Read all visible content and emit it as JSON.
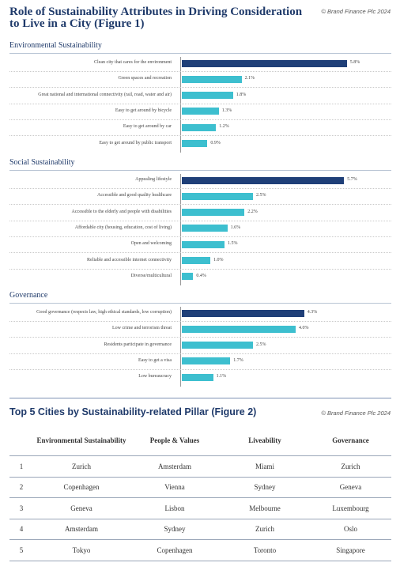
{
  "figure1": {
    "title": "Role of Sustainability Attributes in Driving Consideration to Live in a City (Figure 1)",
    "copyright": "© Brand Finance Plc 2024"
  },
  "chart_data": {
    "type": "bar",
    "orientation": "horizontal",
    "unit": "%",
    "xlim": [
      0,
      6.0
    ],
    "colors": {
      "highlight": "#1f3f78",
      "normal": "#3dbfcf"
    },
    "groups": [
      {
        "name": "Environmental Sustainability",
        "categories": [
          "Clean city that cares for the environment",
          "Green spaces and recreation",
          "Great national and international connectivity (rail, road, water and air)",
          "Easy to get around by bicycle",
          "Easy to get around by car",
          "Easy to get around by public transport"
        ],
        "values": [
          5.8,
          2.1,
          1.8,
          1.3,
          1.2,
          0.9
        ]
      },
      {
        "name": "Social Sustainability",
        "categories": [
          "Appealing lifestyle",
          "Accessible and good quality healthcare",
          "Accessible to the elderly and people with disabilities",
          "Affordable city (housing, education, cost of living)",
          "Open and welcoming",
          "Reliable and accessible internet connectivity",
          "Diverse/multicultural"
        ],
        "values": [
          5.7,
          2.5,
          2.2,
          1.6,
          1.5,
          1.0,
          0.4
        ]
      },
      {
        "name": "Governance",
        "categories": [
          "Good governance (respects law, high ethical standards, low corruption)",
          "Low crime and terrorism threat",
          "Residents participate in governance",
          "Easy to get a visa",
          "Low bureaucracy"
        ],
        "values": [
          4.3,
          4.0,
          2.5,
          1.7,
          1.1
        ]
      }
    ]
  },
  "figure2": {
    "title": "Top 5 Cities by Sustainability-related Pillar (Figure 2)",
    "copyright": "© Brand Finance Plc 2024",
    "headers": [
      "",
      "Environmental Sustainability",
      "People & Values",
      "Liveability",
      "Governance"
    ],
    "rows": [
      [
        "1",
        "Zurich",
        "Amsterdam",
        "Miami",
        "Zurich"
      ],
      [
        "2",
        "Copenhagen",
        "Vienna",
        "Sydney",
        "Geneva"
      ],
      [
        "3",
        "Geneva",
        "Lisbon",
        "Melbourne",
        "Luxembourg"
      ],
      [
        "4",
        "Amsterdam",
        "Sydney",
        "Zurich",
        "Oslo"
      ],
      [
        "5",
        "Tokyo",
        "Copenhagen",
        "Toronto",
        "Singapore"
      ]
    ]
  }
}
